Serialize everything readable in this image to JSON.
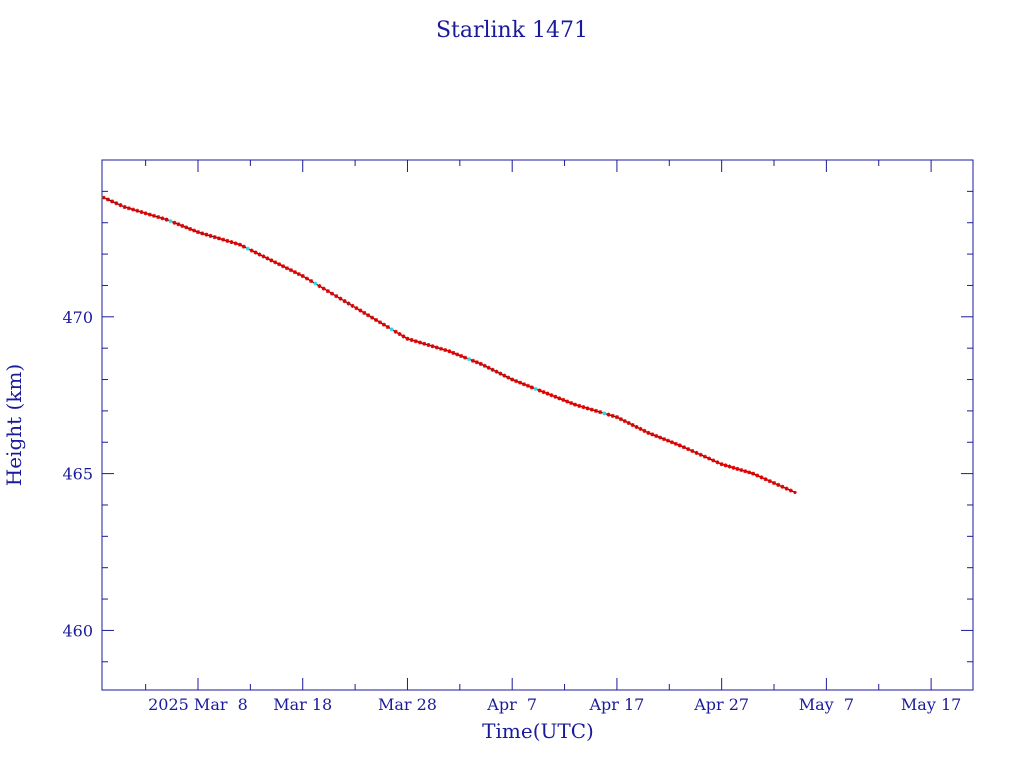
{
  "chart_data": {
    "type": "line",
    "title": "Starlink 1471",
    "xlabel": "Time(UTC)",
    "ylabel": "Height (km)",
    "x_tick_labels": [
      "2025 Mar  8",
      "Mar 18",
      "Mar 28",
      "Apr  7",
      "Apr 17",
      "Apr 27",
      "May  7",
      "May 17"
    ],
    "x_tick_dates": [
      "2025-03-08",
      "2025-03-18",
      "2025-03-28",
      "2025-04-07",
      "2025-04-17",
      "2025-04-27",
      "2025-05-07",
      "2025-05-17"
    ],
    "y_tick_labels": [
      "460",
      "465",
      "470"
    ],
    "y_tick_values": [
      460,
      465,
      470
    ],
    "xlim": [
      "2025-02-26T20:00",
      "2025-05-21T00:00"
    ],
    "ylim": [
      458.1,
      475
    ],
    "grid": false,
    "legend": "none",
    "series": [
      {
        "x": [
          "2025-02-27",
          "2025-03-01",
          "2025-03-05",
          "2025-03-08",
          "2025-03-12",
          "2025-03-15",
          "2025-03-18",
          "2025-03-22",
          "2025-03-25",
          "2025-03-28",
          "2025-04-01",
          "2025-04-04",
          "2025-04-07",
          "2025-04-10",
          "2025-04-13",
          "2025-04-17",
          "2025-04-20",
          "2025-04-23",
          "2025-04-27",
          "2025-04-30",
          "2025-05-04"
        ],
        "y": [
          473.8,
          473.5,
          473.1,
          472.7,
          472.3,
          471.8,
          471.3,
          470.5,
          469.9,
          469.3,
          468.9,
          468.5,
          468.0,
          467.6,
          467.2,
          466.8,
          466.3,
          465.9,
          465.3,
          465.0,
          464.4
        ]
      }
    ],
    "colors": {
      "axes": "#1a1a9c",
      "text": "#1a1a9c",
      "line": "#000000",
      "markers": "#e00000",
      "highlight_markers": "#33d6e0"
    }
  }
}
